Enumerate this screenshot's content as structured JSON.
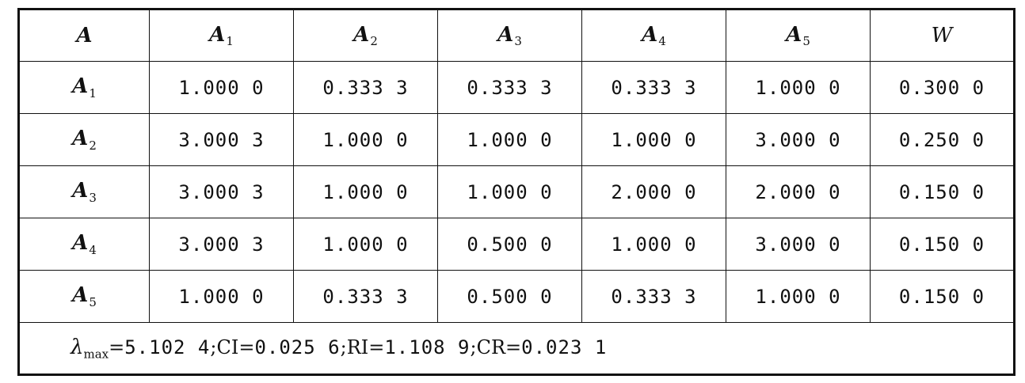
{
  "table": {
    "corner_label": "A",
    "columns": [
      {
        "base": "A",
        "sub": "1"
      },
      {
        "base": "A",
        "sub": "2"
      },
      {
        "base": "A",
        "sub": "3"
      },
      {
        "base": "A",
        "sub": "4"
      },
      {
        "base": "A",
        "sub": "5"
      }
    ],
    "weight_label": "W",
    "rows": [
      {
        "base": "A",
        "sub": "1",
        "cells": [
          "1.000 0",
          "0.333 3",
          "0.333 3",
          "0.333 3",
          "1.000 0"
        ],
        "weight": "0.300 0"
      },
      {
        "base": "A",
        "sub": "2",
        "cells": [
          "3.000 3",
          "1.000 0",
          "1.000 0",
          "1.000 0",
          "3.000 0"
        ],
        "weight": "0.250 0"
      },
      {
        "base": "A",
        "sub": "3",
        "cells": [
          "3.000 3",
          "1.000 0",
          "1.000 0",
          "2.000 0",
          "2.000 0"
        ],
        "weight": "0.150 0"
      },
      {
        "base": "A",
        "sub": "4",
        "cells": [
          "3.000 3",
          "1.000 0",
          "0.500 0",
          "1.000 0",
          "3.000 0"
        ],
        "weight": "0.150 0"
      },
      {
        "base": "A",
        "sub": "5",
        "cells": [
          "1.000 0",
          "0.333 3",
          "0.500 0",
          "0.333 3",
          "1.000 0"
        ],
        "weight": "0.150 0"
      }
    ],
    "footer": {
      "lambda_symbol": "λ",
      "lambda_sub": "max",
      "lambda_value": "5.102 4",
      "ci_label": "CI",
      "ci_value": "0.025 6",
      "ri_label": "RI",
      "ri_value": "1.108 9",
      "cr_label": "CR",
      "cr_value": "0.023 1",
      "eq": "=",
      "sep": ";"
    }
  }
}
